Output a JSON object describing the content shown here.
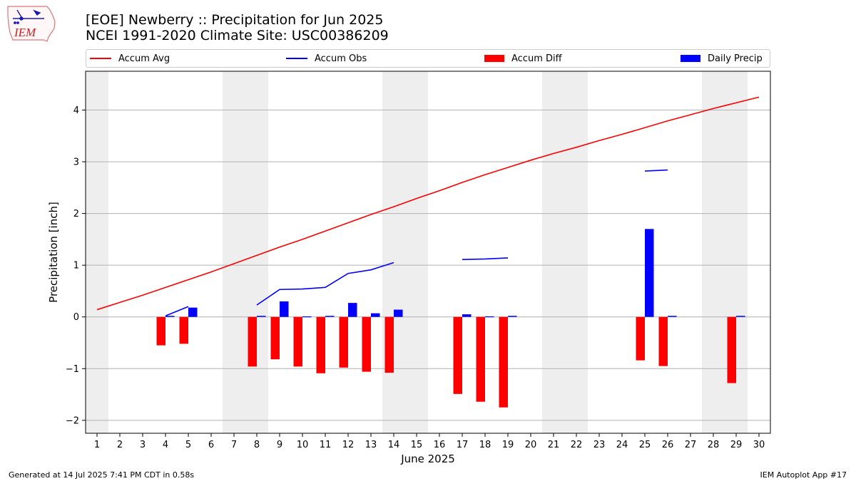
{
  "logo": {
    "text": "IEM",
    "icon": "iowa-state-outline-icon"
  },
  "header": {
    "title_line1": "[EOE] Newberry :: Precipitation for Jun 2025",
    "title_line2": "NCEI 1991-2020 Climate Site: USC00386209"
  },
  "legend": {
    "accum_avg": "Accum Avg",
    "accum_obs": "Accum Obs",
    "accum_diff": "Accum Diff",
    "daily_precip": "Daily Precip"
  },
  "footer": {
    "left": "Generated at 14 Jul 2025 7:41 PM CDT in 0.58s",
    "right": "IEM Autoplot App #17"
  },
  "colors": {
    "avg": "#ff0000",
    "obs": "#0000ff",
    "diff": "#ff0000",
    "precip": "#0000ff",
    "weekend_band": "#eeeeee",
    "grid": "#b0b0b0"
  },
  "chart_data": {
    "type": "bar",
    "xlabel": "June 2025",
    "ylabel": "Precipitation [inch]",
    "x": [
      1,
      2,
      3,
      4,
      5,
      6,
      7,
      8,
      9,
      10,
      11,
      12,
      13,
      14,
      15,
      16,
      17,
      18,
      19,
      20,
      21,
      22,
      23,
      24,
      25,
      26,
      27,
      28,
      29,
      30
    ],
    "ylim": [
      -2.25,
      4.75
    ],
    "yticks": [
      -2,
      -1,
      0,
      1,
      2,
      3,
      4
    ],
    "ytick_labels": [
      "−2",
      "−1",
      "0",
      "1",
      "2",
      "3",
      "4"
    ],
    "grid": "horizontal",
    "legend_position": "top",
    "weekend_shading": [
      [
        0.5,
        1.5
      ],
      [
        6.5,
        8.5
      ],
      [
        13.5,
        15.5
      ],
      [
        20.5,
        22.5
      ],
      [
        27.5,
        29.5
      ]
    ],
    "series": [
      {
        "name": "Accum Avg",
        "kind": "line",
        "values": [
          0.14,
          0.28,
          0.42,
          0.57,
          0.72,
          0.87,
          1.03,
          1.19,
          1.35,
          1.5,
          1.66,
          1.82,
          1.98,
          2.13,
          2.29,
          2.44,
          2.6,
          2.75,
          2.89,
          3.03,
          3.16,
          3.28,
          3.41,
          3.53,
          3.66,
          3.79,
          3.91,
          4.03,
          4.14,
          4.25
        ]
      },
      {
        "name": "Accum Obs",
        "kind": "line",
        "values": [
          null,
          null,
          null,
          0.02,
          0.2,
          null,
          null,
          0.23,
          0.53,
          0.54,
          0.57,
          0.84,
          0.91,
          1.05,
          null,
          null,
          1.11,
          1.12,
          1.14,
          null,
          null,
          null,
          null,
          null,
          2.82,
          2.84,
          null,
          null,
          null,
          null
        ]
      },
      {
        "name": "Accum Diff",
        "kind": "bar",
        "values": [
          null,
          null,
          null,
          -0.55,
          -0.52,
          null,
          null,
          -0.96,
          -0.82,
          -0.96,
          -1.09,
          -0.98,
          -1.06,
          -1.08,
          null,
          null,
          -1.49,
          -1.64,
          -1.75,
          null,
          null,
          null,
          null,
          null,
          -0.84,
          -0.95,
          null,
          null,
          -1.28,
          null
        ]
      },
      {
        "name": "Daily Precip",
        "kind": "bar",
        "values": [
          null,
          null,
          null,
          0.02,
          0.18,
          null,
          null,
          0.02,
          0.3,
          0.01,
          0.02,
          0.27,
          0.07,
          0.14,
          null,
          null,
          0.05,
          0.01,
          0.02,
          null,
          null,
          null,
          null,
          null,
          1.7,
          0.02,
          null,
          null,
          0.02,
          null
        ]
      }
    ]
  }
}
